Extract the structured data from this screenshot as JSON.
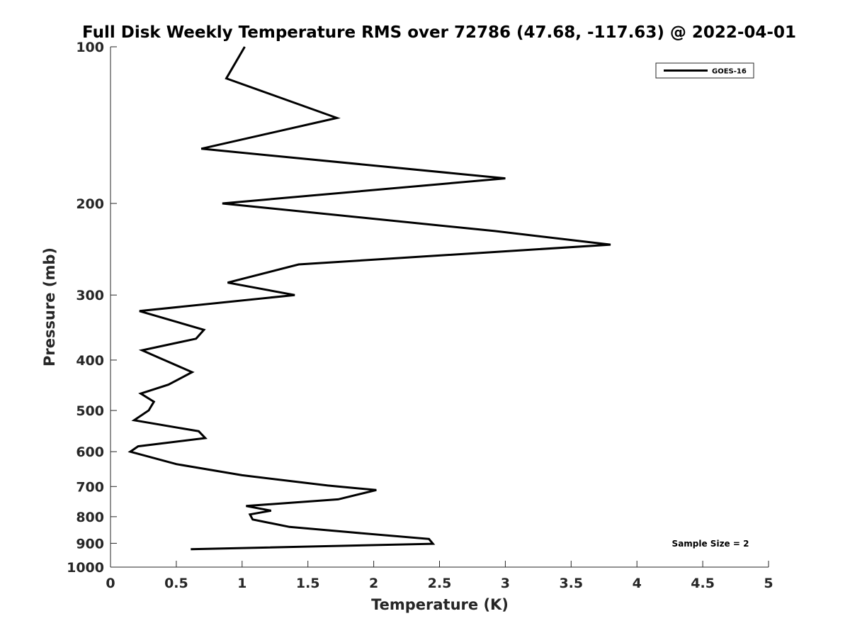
{
  "chart_data": {
    "type": "line",
    "title": "Full Disk Weekly Temperature RMS over 72786 (47.68, -117.63) @ 2022-04-01",
    "xlabel": "Temperature (K)",
    "ylabel": "Pressure (mb)",
    "xlim": [
      0,
      5
    ],
    "ylim": [
      100,
      1000
    ],
    "yscale": "log",
    "yreversed": true,
    "grid": false,
    "xticks": [
      0,
      0.5,
      1,
      1.5,
      2,
      2.5,
      3,
      3.5,
      4,
      4.5,
      5
    ],
    "xtick_labels": [
      "0",
      "0.5",
      "1",
      "1.5",
      "2",
      "2.5",
      "3",
      "3.5",
      "4",
      "4.5",
      "5"
    ],
    "yticks": [
      100,
      200,
      300,
      400,
      500,
      600,
      700,
      800,
      900,
      1000
    ],
    "ytick_labels": [
      "100",
      "200",
      "300",
      "400",
      "500",
      "600",
      "700",
      "800",
      "900",
      "1000"
    ],
    "legend_position": "top-right",
    "series": [
      {
        "name": "GOES-16",
        "color": "#000000",
        "points": [
          [
            1.02,
            100
          ],
          [
            0.88,
            115
          ],
          [
            1.72,
            137
          ],
          [
            0.69,
            157
          ],
          [
            3.0,
            179
          ],
          [
            0.85,
            200
          ],
          [
            2.92,
            226
          ],
          [
            3.8,
            240
          ],
          [
            1.43,
            262
          ],
          [
            0.89,
            284
          ],
          [
            1.4,
            300
          ],
          [
            0.22,
            322
          ],
          [
            0.71,
            350
          ],
          [
            0.65,
            364
          ],
          [
            0.24,
            383
          ],
          [
            0.37,
            396
          ],
          [
            0.62,
            422
          ],
          [
            0.44,
            446
          ],
          [
            0.23,
            464
          ],
          [
            0.33,
            481
          ],
          [
            0.29,
            500
          ],
          [
            0.18,
            522
          ],
          [
            0.67,
            548
          ],
          [
            0.72,
            565
          ],
          [
            0.21,
            586
          ],
          [
            0.15,
            600
          ],
          [
            0.5,
            634
          ],
          [
            1.0,
            666
          ],
          [
            1.65,
            697
          ],
          [
            2.02,
            711
          ],
          [
            1.73,
            741
          ],
          [
            1.03,
            763
          ],
          [
            1.22,
            779
          ],
          [
            1.06,
            792
          ],
          [
            1.08,
            810
          ],
          [
            1.36,
            837
          ],
          [
            1.82,
            857
          ],
          [
            2.42,
            883
          ],
          [
            2.45,
            902
          ],
          [
            0.61,
            924
          ]
        ]
      }
    ],
    "annotations": [
      "Sample Size = 2"
    ]
  }
}
